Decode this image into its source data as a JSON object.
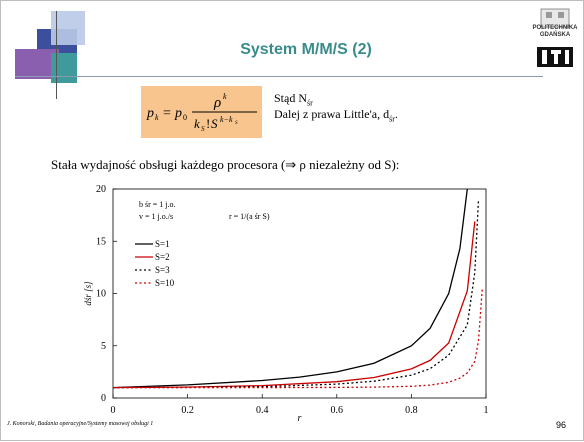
{
  "slide": {
    "title": "System M/M/S (2)",
    "side_text": {
      "line1": "Stąd N",
      "line1_sub": "śr",
      "line2": "Dalej z prawa Little'a, d",
      "line2_sub": "śr",
      "line2_end": "."
    },
    "statement": "Stała wydajność obsługi każdego procesora (⇒ ρ niezależny od S):",
    "footer": "J. Konorski, Badania operacyjne/Systemy masowej obsługi 1",
    "page_number": "96",
    "logo_text_top": "POLITECHNIKA",
    "logo_text_bottom": "GDAŃSKA"
  },
  "colors": {
    "title": "#3a8c8c",
    "formula_box": "#f7c58d",
    "series_1": "#000000",
    "series_2": "#cc0000"
  },
  "chart_data": {
    "type": "line",
    "xlabel": "r",
    "ylabel": "dśr [s]",
    "xlim": [
      0,
      1
    ],
    "ylim": [
      0,
      20
    ],
    "x_ticks": [
      "0",
      "0.2",
      "0.4",
      "0.6",
      "0.8",
      "1"
    ],
    "y_ticks": [
      "0",
      "5",
      "10",
      "15",
      "20"
    ],
    "annotations": [
      "b śr = 1 j.o.",
      "v = 1 j.o./s",
      "r = 1/(a śr S)"
    ],
    "series": [
      {
        "name": "S=1",
        "style": "solid",
        "color": "#000000",
        "x": [
          0,
          0.2,
          0.4,
          0.5,
          0.6,
          0.7,
          0.8,
          0.85,
          0.9,
          0.93,
          0.95
        ],
        "y": [
          1.0,
          1.25,
          1.67,
          2.0,
          2.5,
          3.33,
          5.0,
          6.67,
          10.0,
          14.3,
          20.0
        ]
      },
      {
        "name": "S=2",
        "style": "solid",
        "color": "#cc0000",
        "x": [
          0,
          0.2,
          0.4,
          0.6,
          0.7,
          0.8,
          0.85,
          0.9,
          0.95,
          0.97
        ],
        "y": [
          1.0,
          1.04,
          1.19,
          1.56,
          1.96,
          2.78,
          3.6,
          5.26,
          10.26,
          16.9
        ]
      },
      {
        "name": "S=3",
        "style": "dotted",
        "color": "#000000",
        "x": [
          0,
          0.2,
          0.4,
          0.6,
          0.7,
          0.8,
          0.85,
          0.9,
          0.95,
          0.97,
          0.98
        ],
        "y": [
          1.0,
          1.01,
          1.08,
          1.33,
          1.61,
          2.18,
          2.8,
          4.1,
          7.0,
          12.0,
          19.0
        ]
      },
      {
        "name": "S=10",
        "style": "dotted",
        "color": "#cc0000",
        "x": [
          0,
          0.4,
          0.6,
          0.7,
          0.8,
          0.85,
          0.9,
          0.93,
          0.95,
          0.97,
          0.98,
          0.99
        ],
        "y": [
          1.0,
          1.0,
          1.01,
          1.04,
          1.12,
          1.23,
          1.5,
          1.9,
          2.4,
          3.5,
          5.5,
          10.5
        ]
      }
    ]
  }
}
